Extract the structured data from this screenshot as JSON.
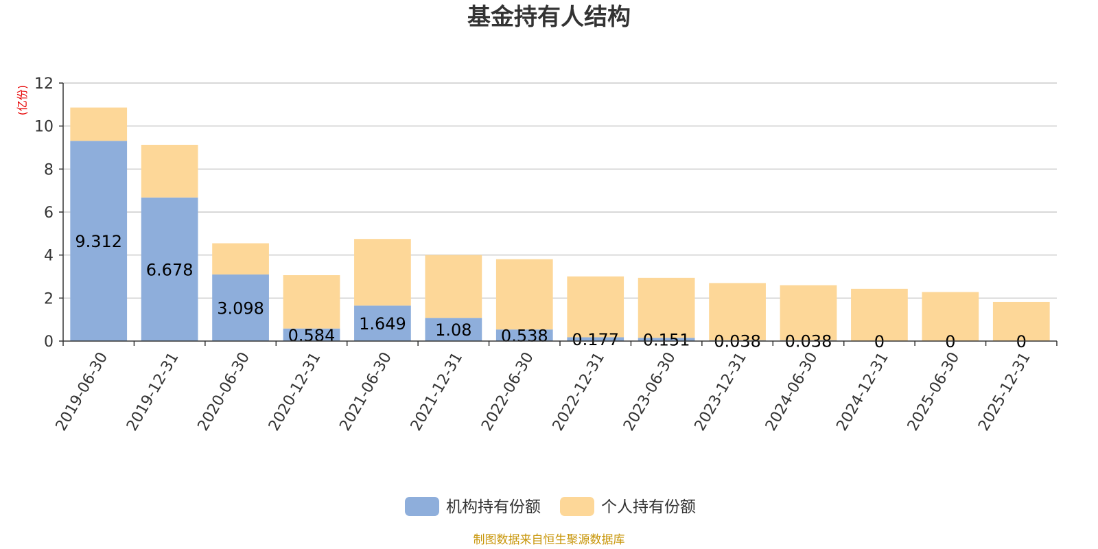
{
  "chart_data": {
    "type": "bar",
    "stacked": true,
    "title": "基金持有人结构",
    "ylabel": "(亿份)",
    "ylim": [
      0,
      12
    ],
    "yticks": [
      0,
      2,
      4,
      6,
      8,
      10,
      12
    ],
    "grid": true,
    "legend_position": "bottom",
    "categories": [
      "2019-06-30",
      "2019-12-31",
      "2020-06-30",
      "2020-12-31",
      "2021-06-30",
      "2021-12-31",
      "2022-06-30",
      "2022-12-31",
      "2023-06-30",
      "2023-12-31",
      "2024-06-30",
      "2024-12-31",
      "2025-06-30",
      "2025-12-31"
    ],
    "series": [
      {
        "name": "机构持有份额",
        "color": "#8eaedb",
        "values": [
          9.312,
          6.678,
          3.098,
          0.584,
          1.649,
          1.08,
          0.538,
          0.177,
          0.151,
          0.038,
          0.038,
          0,
          0,
          0
        ],
        "labels": [
          "9.312",
          "6.678",
          "3.098",
          "0.584",
          "1.649",
          "1.08",
          "0.538",
          "0.177",
          "0.151",
          "0.038",
          "0.038",
          "0",
          "0",
          "0"
        ]
      },
      {
        "name": "个人持有份额",
        "color": "#fdd798",
        "values": [
          1.55,
          2.45,
          1.45,
          2.48,
          3.1,
          2.92,
          3.27,
          2.83,
          2.79,
          2.66,
          2.56,
          2.43,
          2.28,
          1.82
        ]
      }
    ],
    "source": "制图数据来自恒生聚源数据库"
  }
}
